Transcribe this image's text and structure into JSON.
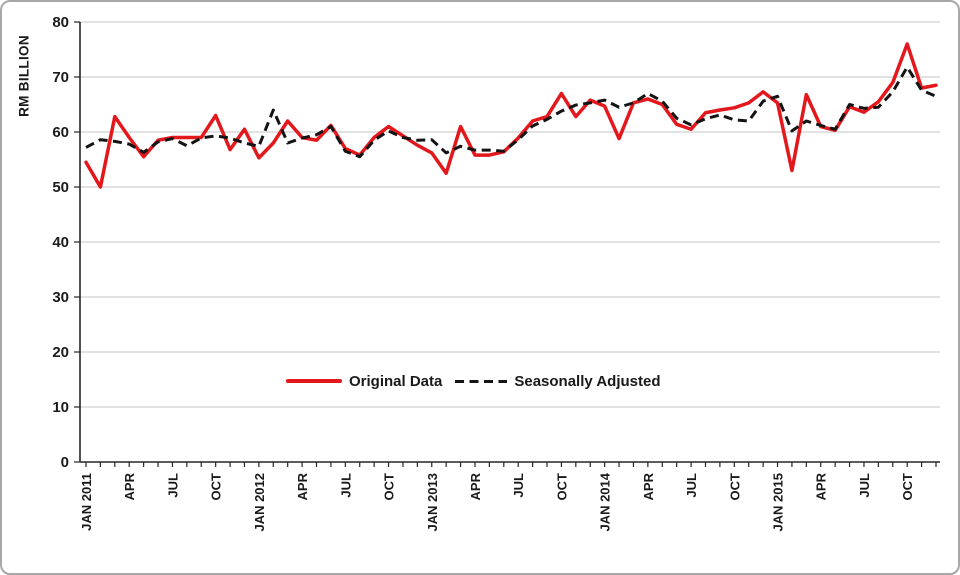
{
  "chart_data": {
    "type": "line",
    "title": "",
    "ylabel": "RM BILLION",
    "xlabel": "",
    "ylim": [
      0,
      80
    ],
    "y_tick_step": 10,
    "grid": "horizontal",
    "legend_position": "inside-bottom-center",
    "x": [
      "JAN 2011",
      "FEB 2011",
      "MAR 2011",
      "APR 2011",
      "MAY 2011",
      "JUN 2011",
      "JUL 2011",
      "AUG 2011",
      "SEP 2011",
      "OCT 2011",
      "NOV 2011",
      "DEC 2011",
      "JAN 2012",
      "FEB 2012",
      "MAR 2012",
      "APR 2012",
      "MAY 2012",
      "JUN 2012",
      "JUL 2012",
      "AUG 2012",
      "SEP 2012",
      "OCT 2012",
      "NOV 2012",
      "DEC 2012",
      "JAN 2013",
      "FEB 2013",
      "MAR 2013",
      "APR 2013",
      "MAY 2013",
      "JUN 2013",
      "JUL 2013",
      "AUG 2013",
      "SEP 2013",
      "OCT 2013",
      "NOV 2013",
      "DEC 2013",
      "JAN 2014",
      "FEB 2014",
      "MAR 2014",
      "APR 2014",
      "MAY 2014",
      "JUN 2014",
      "JUL 2014",
      "AUG 2014",
      "SEP 2014",
      "OCT 2014",
      "NOV 2014",
      "DEC 2014",
      "JAN 2015",
      "FEB 2015",
      "MAR 2015",
      "APR 2015",
      "MAY 2015",
      "JUN 2015",
      "JUL 2015",
      "AUG 2015",
      "SEP 2015",
      "OCT 2015",
      "NOV 2015",
      "DEC 2015"
    ],
    "x_tick_label_every": 3,
    "x_tick_labels": [
      "JAN 2011",
      "APR",
      "JUL",
      "OCT",
      "JAN 2012",
      "APR",
      "JUL",
      "OCT",
      "JAN 2013",
      "APR",
      "JUL",
      "OCT",
      "JAN 2014",
      "APR",
      "JUL",
      "OCT",
      "JAN 2015",
      "APR",
      "JUL",
      "OCT"
    ],
    "series": [
      {
        "name": "Original Data",
        "color": "#e3181d",
        "style": "solid",
        "values": [
          54.5,
          50.0,
          62.8,
          59.0,
          55.5,
          58.5,
          59.0,
          59.0,
          59.0,
          63.0,
          56.8,
          60.5,
          55.3,
          58.0,
          62.0,
          59.0,
          58.5,
          61.2,
          57.0,
          55.8,
          59.0,
          61.0,
          59.3,
          57.6,
          56.2,
          52.5,
          61.0,
          55.8,
          55.8,
          56.4,
          58.9,
          62.0,
          62.8,
          67.0,
          62.8,
          65.8,
          64.7,
          58.8,
          65.3,
          66.0,
          65.0,
          61.4,
          60.5,
          63.5,
          64.0,
          64.4,
          65.3,
          67.3,
          65.3,
          53.0,
          66.8,
          61.0,
          60.3,
          64.6,
          63.6,
          65.5,
          69.0,
          76.0,
          68.0,
          68.5
        ]
      },
      {
        "name": "Seasonally Adjusted",
        "color": "#141414",
        "style": "dashed",
        "values": [
          57.2,
          58.6,
          58.3,
          57.8,
          56.3,
          58.2,
          58.8,
          57.5,
          58.9,
          59.3,
          58.9,
          58.0,
          57.4,
          64.0,
          58.0,
          58.9,
          59.5,
          61.0,
          56.5,
          55.5,
          58.5,
          60.2,
          59.0,
          58.5,
          58.6,
          56.2,
          57.4,
          56.7,
          56.7,
          56.5,
          58.6,
          61.1,
          62.3,
          63.8,
          64.9,
          65.3,
          65.8,
          64.5,
          65.3,
          67.0,
          65.6,
          62.5,
          61.3,
          62.4,
          63.1,
          62.2,
          62.0,
          65.6,
          66.5,
          60.2,
          62.0,
          61.2,
          60.5,
          65.0,
          64.3,
          64.5,
          67.3,
          71.8,
          67.6,
          66.5
        ]
      }
    ]
  }
}
